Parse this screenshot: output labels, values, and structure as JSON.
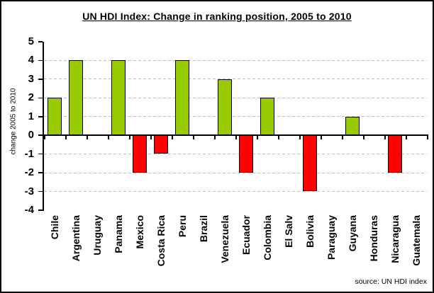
{
  "title": "UN HDI Index: Change in ranking position, 2005 to 2010",
  "source_note": "source: UN HDI index",
  "colors": {
    "positive_bar": "#99CC00",
    "negative_bar": "#FF0000",
    "bar_border": "#000000",
    "gridline": "#C0C0C0",
    "axis": "#000000",
    "background": "#FFFFFF",
    "frame_border": "#000000",
    "text": "#000000"
  },
  "chart_data": {
    "type": "bar",
    "title": "UN HDI Index: Change in ranking position, 2005 to 2010",
    "xlabel": "",
    "ylabel": "change 2005 to 2010",
    "categories": [
      "Chile",
      "Argentina",
      "Uruguay",
      "Panama",
      "Mexico",
      "Costa Rica",
      "Peru",
      "Brazil",
      "Venezuela",
      "Ecuador",
      "Colombia",
      "El Salv",
      "Bolivia",
      "Paraguay",
      "Guyana",
      "Honduras",
      "Nicaragua",
      "Guatemala"
    ],
    "values": [
      2,
      4,
      0,
      4,
      -2,
      -1,
      4,
      0,
      3,
      -2,
      2,
      0,
      -3,
      0,
      1,
      0,
      -2,
      0
    ],
    "ylim": [
      -4,
      5
    ],
    "yticks": [
      5,
      4,
      3,
      2,
      1,
      0,
      -1,
      -2,
      -3,
      -4
    ],
    "gridline_values": [
      4,
      3,
      2,
      1,
      -1,
      -2,
      -3
    ],
    "grid": "horizontal-dashed",
    "legend": "none",
    "bar_color_rule": "green if positive, red if negative, no bar if zero"
  }
}
